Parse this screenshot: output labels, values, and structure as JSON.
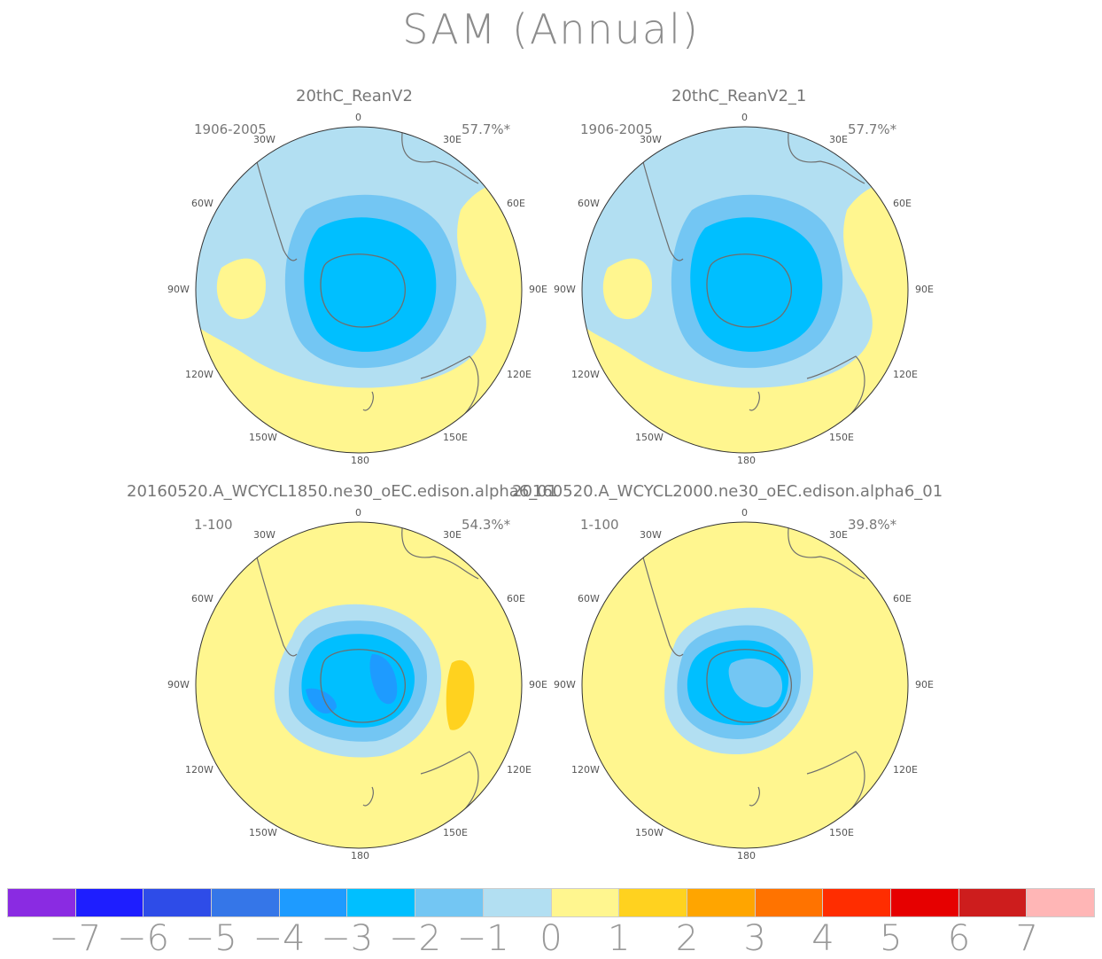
{
  "title": "SAM (Annual)",
  "panels": [
    {
      "name": "20thC_ReanV2",
      "period": "1906-2005",
      "variance": "57.7%*"
    },
    {
      "name": "20thC_ReanV2_1",
      "period": "1906-2005",
      "variance": "57.7%*"
    },
    {
      "name": "20160520.A_WCYCL1850.ne30_oEC.edison.alpha6_01",
      "period": "1-100",
      "variance": "54.3%*"
    },
    {
      "name": "20160520.A_WCYCL2000.ne30_oEC.edison.alpha6_01",
      "period": "1-100",
      "variance": "39.8%*"
    }
  ],
  "longitude_labels": [
    "0",
    "30E",
    "60E",
    "90E",
    "120E",
    "150E",
    "180",
    "150W",
    "120W",
    "90W",
    "60W",
    "30W"
  ],
  "colorbar": {
    "labels": [
      "-7",
      "-6",
      "-5",
      "-4",
      "-3",
      "-2",
      "-1",
      "0",
      "1",
      "2",
      "3",
      "4",
      "5",
      "6",
      "7"
    ],
    "colors": [
      "#8a2be2",
      "#1e1eff",
      "#2e4ce8",
      "#3576e8",
      "#1e9bff",
      "#00bfff",
      "#73c6f3",
      "#b2dff2",
      "#fff68f",
      "#ffd21f",
      "#ffa500",
      "#ff7300",
      "#ff2d00",
      "#e60000",
      "#cd1d1d",
      "#ffb6b6"
    ]
  },
  "colors": {
    "land_outline": "#6e6e6e",
    "neutral_fill": "#fff68f"
  }
}
